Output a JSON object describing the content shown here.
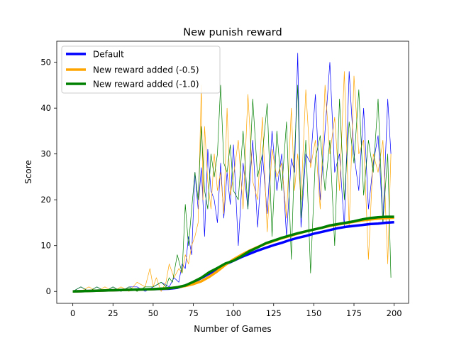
{
  "chart_data": {
    "type": "line",
    "title": "New punish reward",
    "xlabel": "Number of Games",
    "ylabel": "Score",
    "xlim": [
      -10,
      209
    ],
    "ylim": [
      -2.6,
      54.6
    ],
    "xticks": [
      "0",
      "25",
      "50",
      "75",
      "100",
      "125",
      "150",
      "175",
      "200"
    ],
    "yticks": [
      "0",
      "10",
      "20",
      "30",
      "40",
      "50"
    ],
    "legend_position": "top-left",
    "grid": false,
    "colors": {
      "default": "#0000ff",
      "reward_05": "#ffa500",
      "reward_10": "#008000",
      "axes": "#000000"
    },
    "raw_scores": [
      {
        "name": "Default",
        "color": "#0000ff",
        "x": [
          0,
          5,
          10,
          15,
          20,
          25,
          30,
          35,
          40,
          45,
          50,
          55,
          60,
          63,
          66,
          68,
          70,
          72,
          74,
          76,
          78,
          80,
          82,
          84,
          86,
          88,
          90,
          92,
          94,
          96,
          98,
          100,
          103,
          106,
          109,
          112,
          115,
          118,
          121,
          124,
          127,
          130,
          133,
          136,
          138,
          140,
          142,
          145,
          148,
          151,
          154,
          157,
          160,
          163,
          166,
          169,
          172,
          175,
          178,
          181,
          184,
          187,
          190,
          193,
          196,
          198
        ],
        "y": [
          0,
          1,
          0,
          1,
          0,
          1,
          0,
          1,
          1,
          0,
          1,
          2,
          1,
          3,
          2,
          6,
          5,
          12,
          8,
          26,
          18,
          27,
          12,
          31,
          22,
          20,
          15,
          28,
          16,
          26,
          19,
          32,
          10,
          28,
          18,
          33,
          14,
          30,
          17,
          35,
          22,
          30,
          12,
          29,
          26,
          52,
          14,
          30,
          28,
          43,
          20,
          35,
          50,
          26,
          30,
          14,
          48,
          30,
          22,
          40,
          18,
          28,
          34,
          15,
          42,
          30
        ]
      },
      {
        "name": "New reward added (-0.5)",
        "color": "#ffa500",
        "x": [
          0,
          5,
          10,
          15,
          20,
          25,
          30,
          35,
          40,
          45,
          48,
          50,
          52,
          55,
          58,
          60,
          63,
          66,
          68,
          70,
          72,
          74,
          76,
          78,
          80,
          81,
          82,
          84,
          86,
          88,
          90,
          92,
          94,
          96,
          98,
          100,
          103,
          106,
          109,
          112,
          115,
          118,
          121,
          124,
          127,
          130,
          133,
          136,
          138,
          140,
          142,
          145,
          148,
          151,
          154,
          157,
          160,
          163,
          166,
          169,
          172,
          175,
          178,
          181,
          184,
          187,
          190,
          193,
          196,
          198
        ],
        "y": [
          0,
          0,
          1,
          0,
          1,
          0,
          1,
          0,
          2,
          1,
          5,
          1,
          3,
          0,
          2,
          6,
          3,
          5,
          4,
          8,
          6,
          10,
          12,
          15,
          45,
          20,
          36,
          24,
          18,
          30,
          22,
          26,
          17,
          40,
          21,
          25,
          33,
          18,
          43,
          24,
          20,
          38,
          13,
          31,
          25,
          28,
          16,
          40,
          22,
          30,
          20,
          44,
          27,
          33,
          18,
          45,
          30,
          38,
          22,
          48,
          14,
          47,
          30,
          33,
          7,
          30,
          26,
          33,
          6,
          30
        ]
      },
      {
        "name": "New reward added (-1.0)",
        "color": "#008000",
        "x": [
          0,
          5,
          10,
          15,
          20,
          25,
          30,
          35,
          40,
          45,
          50,
          55,
          58,
          60,
          62,
          65,
          68,
          70,
          72,
          74,
          76,
          78,
          80,
          82,
          84,
          86,
          88,
          90,
          92,
          94,
          96,
          98,
          100,
          103,
          106,
          109,
          112,
          115,
          118,
          121,
          124,
          127,
          130,
          133,
          136,
          138,
          140,
          142,
          145,
          148,
          151,
          154,
          157,
          160,
          163,
          166,
          169,
          172,
          175,
          178,
          181,
          184,
          187,
          190,
          193,
          196,
          198
        ],
        "y": [
          0,
          1,
          0,
          1,
          0,
          1,
          0,
          1,
          0,
          1,
          1,
          2,
          1,
          3,
          2,
          8,
          4,
          19,
          10,
          18,
          26,
          20,
          36,
          22,
          18,
          30,
          25,
          30,
          45,
          28,
          26,
          32,
          22,
          20,
          35,
          18,
          42,
          25,
          30,
          41,
          12,
          35,
          22,
          37,
          7,
          30,
          45,
          16,
          33,
          4,
          29,
          34,
          22,
          33,
          10,
          42,
          20,
          37,
          28,
          44,
          21,
          33,
          26,
          42,
          15,
          30,
          3
        ]
      }
    ],
    "series": [
      {
        "name": "Default",
        "color": "#0000ff",
        "x": [
          0,
          20,
          40,
          50,
          60,
          65,
          70,
          75,
          80,
          85,
          90,
          95,
          100,
          105,
          110,
          115,
          120,
          125,
          130,
          135,
          140,
          145,
          150,
          155,
          160,
          165,
          170,
          175,
          180,
          185,
          190,
          195,
          200
        ],
        "y": [
          0,
          0.2,
          0.4,
          0.5,
          0.6,
          0.8,
          1.3,
          2.0,
          2.9,
          3.9,
          4.9,
          5.9,
          6.7,
          7.5,
          8.2,
          8.9,
          9.5,
          10.1,
          10.6,
          11.2,
          11.7,
          12.1,
          12.6,
          13.0,
          13.4,
          13.8,
          14.1,
          14.3,
          14.5,
          14.7,
          14.8,
          15.0,
          15.1
        ]
      },
      {
        "name": "New reward added (-0.5)",
        "color": "#ffa500",
        "x": [
          0,
          20,
          40,
          50,
          60,
          65,
          70,
          75,
          80,
          85,
          90,
          95,
          100,
          105,
          110,
          115,
          120,
          125,
          130,
          135,
          140,
          145,
          150,
          155,
          160,
          165,
          170,
          175,
          180,
          185,
          190,
          195,
          200
        ],
        "y": [
          0,
          0.2,
          0.4,
          0.5,
          0.7,
          0.9,
          1.2,
          1.6,
          2.2,
          3.2,
          4.4,
          5.8,
          7.0,
          8.0,
          8.9,
          9.7,
          10.4,
          11.0,
          11.6,
          12.1,
          12.6,
          13.1,
          13.5,
          13.9,
          14.3,
          14.6,
          14.9,
          15.2,
          15.5,
          15.7,
          15.9,
          16.0,
          16.1
        ]
      },
      {
        "name": "New reward added (-1.0)",
        "color": "#008000",
        "x": [
          0,
          20,
          40,
          50,
          60,
          65,
          70,
          75,
          80,
          85,
          90,
          95,
          100,
          105,
          110,
          115,
          120,
          125,
          130,
          135,
          140,
          145,
          150,
          155,
          160,
          165,
          170,
          175,
          180,
          185,
          190,
          195,
          200
        ],
        "y": [
          0,
          0.2,
          0.4,
          0.5,
          0.7,
          0.9,
          1.3,
          2.1,
          3.0,
          4.2,
          5.1,
          6.1,
          6.7,
          7.7,
          8.8,
          9.6,
          10.5,
          11.1,
          11.7,
          12.2,
          12.7,
          13.1,
          13.5,
          13.9,
          14.4,
          14.7,
          15.0,
          15.3,
          15.7,
          16.0,
          16.2,
          16.3,
          16.3
        ]
      }
    ]
  }
}
